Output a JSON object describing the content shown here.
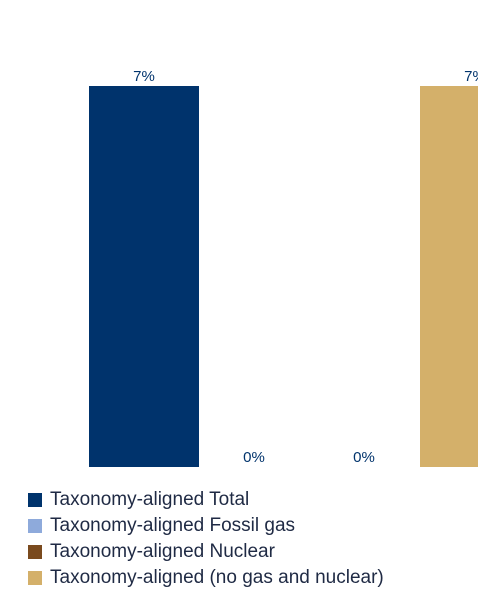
{
  "chart_data": {
    "type": "bar",
    "series": [
      {
        "name": "Taxonomy-aligned Total",
        "values": [
          7
        ],
        "color": "#00336c",
        "label": "7%"
      },
      {
        "name": "Taxonomy-aligned Fossil gas",
        "values": [
          0
        ],
        "color": "#8eaadb",
        "label": "0%"
      },
      {
        "name": "Taxonomy-aligned Nuclear",
        "values": [
          0
        ],
        "color": "#7a4a1e",
        "label": "0%"
      },
      {
        "name": "Taxonomy-aligned (no gas and nuclear)",
        "values": [
          7
        ],
        "color": "#d4b06a",
        "label": "7%"
      }
    ],
    "ylim": [
      0,
      7
    ],
    "grid": false,
    "legend": "bottom-left"
  }
}
